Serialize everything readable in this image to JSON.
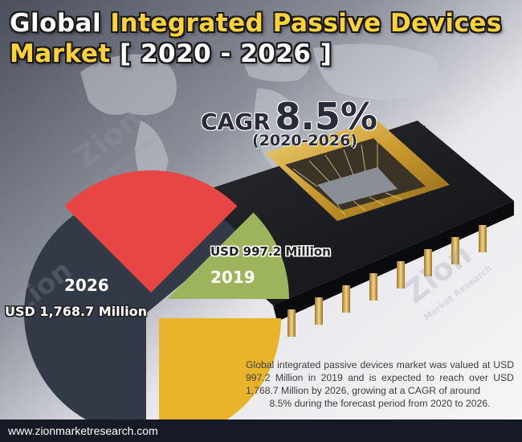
{
  "title": {
    "part1": "Global ",
    "part2": "Integrated Passive Devices",
    "part3": "Market",
    "part4": " [ 2020 - 2026 ]"
  },
  "cagr": {
    "label": "CAGR",
    "value": "8.5%",
    "period": "(2020-2026)"
  },
  "chart_data": {
    "type": "pie",
    "categories": [
      "2026",
      "2019"
    ],
    "values": [
      1768.7,
      997.2
    ],
    "value_labels": [
      "USD 1,768.7 Million",
      "USD 997.2 Million"
    ],
    "unit": "USD Million",
    "colors": [
      "#333a47",
      "#9cb55d"
    ],
    "accent_colors": [
      "#e84545",
      "#e9b42a"
    ]
  },
  "watermark": {
    "brand": "Zion",
    "sub": "Market Research"
  },
  "description": {
    "body": "Global integrated passive devices market was valued at USD 997.2 Million in 2019 and is expected to reach over USD 1,768.7 Million by 2026, growing at a CAGR of around",
    "last_line": "8.5% during the forecast period from 2020 to 2026."
  },
  "footer": {
    "url": "www.zionmarketresearch.com"
  },
  "colors": {
    "title_yellow": "#ffd23a",
    "footer_bg": "#151a26"
  }
}
